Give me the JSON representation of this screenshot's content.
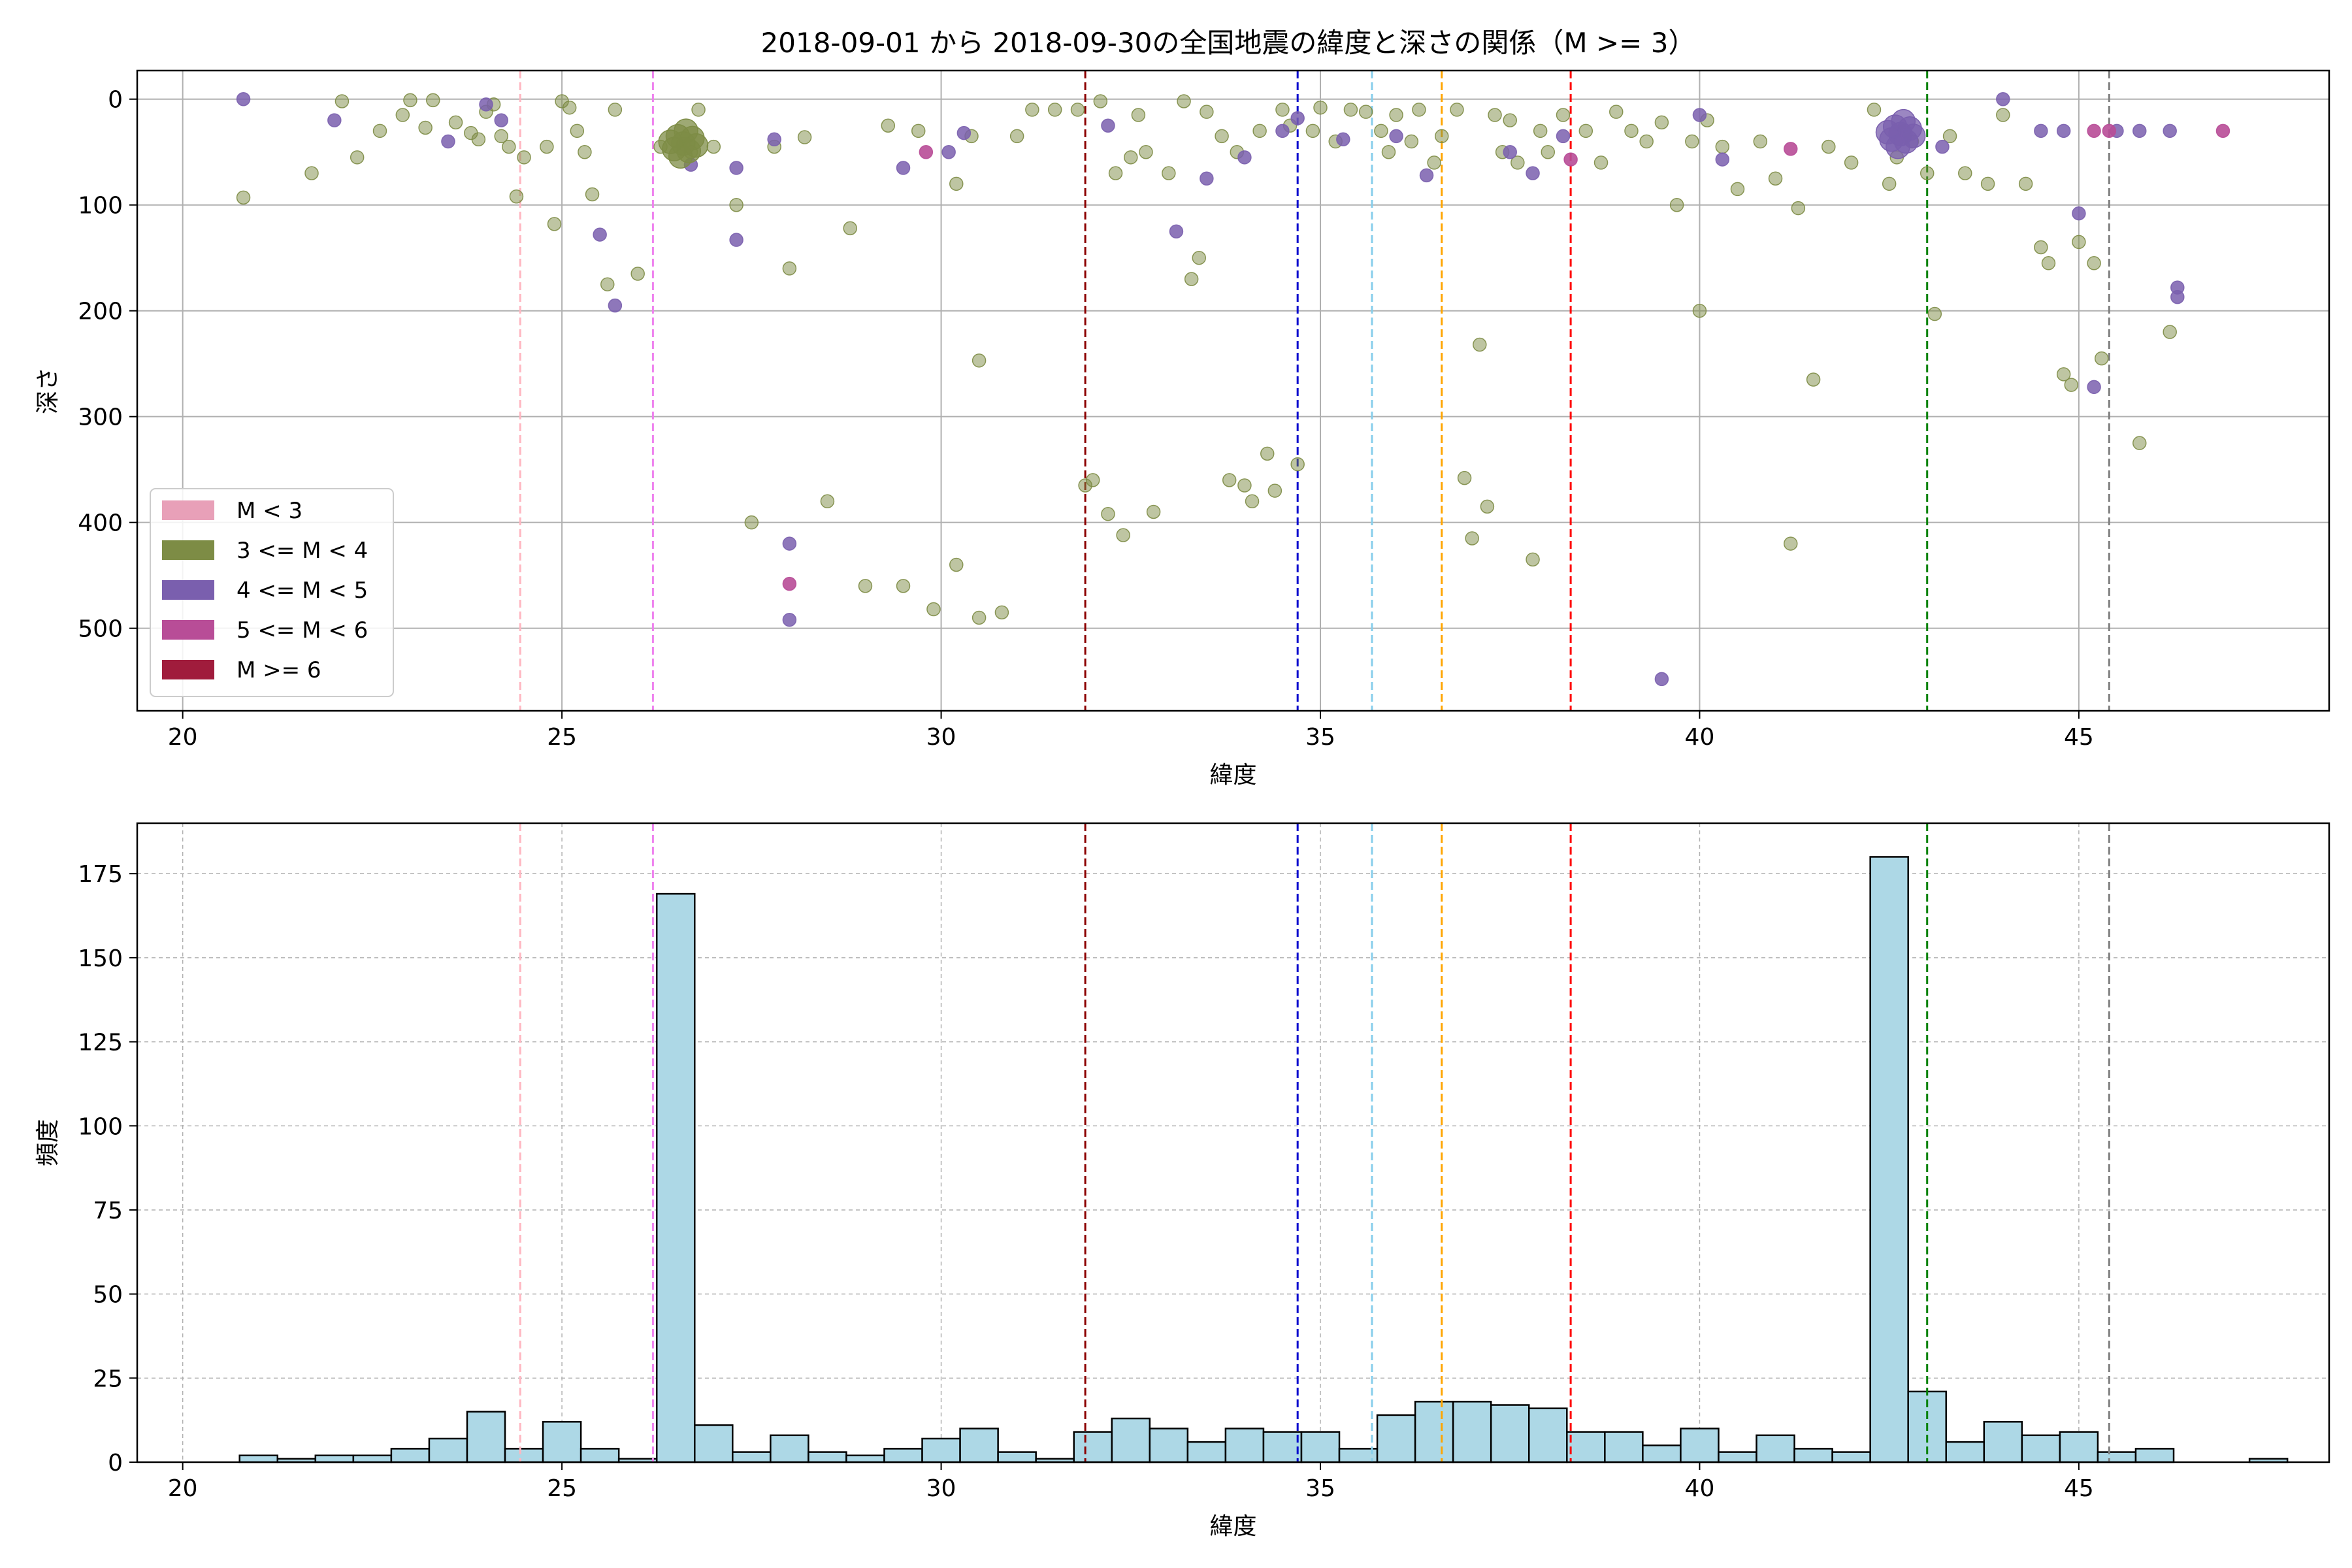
{
  "title": "2018-09-01 から 2018-09-30の全国地震の緯度と深さの関係（M >= 3）",
  "colors": {
    "m_lt3": "#e8a0b8",
    "m_3_4": "#7d8c45",
    "m_4_5": "#7a5fae",
    "m_5_6": "#b84d97",
    "m_ge6": "#a01c3c",
    "bar_fill": "#add8e6",
    "grid": "#b0b0b0"
  },
  "legend": {
    "items": [
      {
        "label": "M < 3",
        "color": "#e8a0b8"
      },
      {
        "label": "3 <= M < 4",
        "color": "#7d8c45"
      },
      {
        "label": "4 <= M < 5",
        "color": "#7a5fae"
      },
      {
        "label": "5 <= M < 6",
        "color": "#b84d97"
      },
      {
        "label": "M >= 6",
        "color": "#a01c3c"
      }
    ]
  },
  "chart_data": [
    {
      "type": "scatter",
      "title": "2018-09-01 から 2018-09-30の全国地震の緯度と深さの関係（M >= 3）",
      "xlabel": "緯度",
      "ylabel": "深さ",
      "xlim": [
        19.4,
        48.3
      ],
      "ylim": [
        578,
        -27
      ],
      "y_inverted": true,
      "grid": true,
      "legend_position": "lower-left",
      "x_ticks": [
        20,
        25,
        30,
        35,
        40,
        45
      ],
      "y_ticks": [
        0,
        100,
        200,
        300,
        400,
        500
      ],
      "vlines": [
        {
          "x": 24.45,
          "color": "#ffb6c1"
        },
        {
          "x": 26.2,
          "color": "#ee82ee"
        },
        {
          "x": 31.9,
          "color": "#8b0000"
        },
        {
          "x": 34.7,
          "color": "#0000cd"
        },
        {
          "x": 35.68,
          "color": "#87ceeb"
        },
        {
          "x": 36.6,
          "color": "#ffa500"
        },
        {
          "x": 38.3,
          "color": "#ff0000"
        },
        {
          "x": 43.0,
          "color": "#008000"
        },
        {
          "x": 45.4,
          "color": "#808080"
        }
      ],
      "series": [
        {
          "name": "3 <= M < 4",
          "color": "#7d8c45",
          "alpha": 0.5,
          "points": [
            [
              20.8,
              93
            ],
            [
              21.7,
              70
            ],
            [
              22.1,
              2
            ],
            [
              22.3,
              55
            ],
            [
              22.6,
              30
            ],
            [
              22.9,
              15
            ],
            [
              23.0,
              1
            ],
            [
              23.2,
              27
            ],
            [
              23.3,
              1
            ],
            [
              23.6,
              22
            ],
            [
              23.8,
              32
            ],
            [
              23.9,
              38
            ],
            [
              24.0,
              12
            ],
            [
              24.1,
              5
            ],
            [
              24.2,
              35
            ],
            [
              24.3,
              45
            ],
            [
              24.4,
              92
            ],
            [
              24.5,
              55
            ],
            [
              24.8,
              45
            ],
            [
              24.9,
              118
            ],
            [
              25.0,
              2
            ],
            [
              25.1,
              8
            ],
            [
              25.2,
              30
            ],
            [
              25.3,
              50
            ],
            [
              25.4,
              90
            ],
            [
              25.6,
              175
            ],
            [
              25.7,
              10
            ],
            [
              26.0,
              165
            ],
            [
              26.3,
              45
            ],
            [
              26.6,
              42
            ],
            [
              26.7,
              50
            ],
            [
              26.8,
              10
            ],
            [
              27.0,
              45
            ],
            [
              27.3,
              100
            ],
            [
              27.5,
              400
            ],
            [
              27.8,
              45
            ],
            [
              28.0,
              160
            ],
            [
              28.2,
              36
            ],
            [
              28.5,
              380
            ],
            [
              28.8,
              122
            ],
            [
              29.0,
              460
            ],
            [
              29.3,
              25
            ],
            [
              29.5,
              460
            ],
            [
              29.7,
              30
            ],
            [
              29.9,
              482
            ],
            [
              30.2,
              80
            ],
            [
              30.2,
              440
            ],
            [
              30.4,
              35
            ],
            [
              30.5,
              490
            ],
            [
              30.5,
              247
            ],
            [
              30.8,
              485
            ],
            [
              31.0,
              35
            ],
            [
              31.2,
              10
            ],
            [
              31.5,
              10
            ],
            [
              31.8,
              10
            ],
            [
              31.9,
              365
            ],
            [
              32.0,
              360
            ],
            [
              32.1,
              2
            ],
            [
              32.2,
              392
            ],
            [
              32.3,
              70
            ],
            [
              32.4,
              412
            ],
            [
              32.5,
              55
            ],
            [
              32.6,
              15
            ],
            [
              32.7,
              50
            ],
            [
              32.8,
              390
            ],
            [
              33.0,
              70
            ],
            [
              33.2,
              2
            ],
            [
              33.3,
              170
            ],
            [
              33.4,
              150
            ],
            [
              33.5,
              12
            ],
            [
              33.7,
              35
            ],
            [
              33.8,
              360
            ],
            [
              33.9,
              50
            ],
            [
              34.0,
              365
            ],
            [
              34.1,
              380
            ],
            [
              34.2,
              30
            ],
            [
              34.3,
              335
            ],
            [
              34.4,
              370
            ],
            [
              34.5,
              10
            ],
            [
              34.6,
              25
            ],
            [
              34.7,
              345
            ],
            [
              34.9,
              30
            ],
            [
              35.0,
              8
            ],
            [
              35.2,
              40
            ],
            [
              35.4,
              10
            ],
            [
              35.6,
              12
            ],
            [
              35.8,
              30
            ],
            [
              35.9,
              50
            ],
            [
              36.0,
              15
            ],
            [
              36.2,
              40
            ],
            [
              36.3,
              10
            ],
            [
              36.5,
              60
            ],
            [
              36.6,
              35
            ],
            [
              36.8,
              10
            ],
            [
              36.9,
              358
            ],
            [
              37.0,
              415
            ],
            [
              37.1,
              232
            ],
            [
              37.2,
              385
            ],
            [
              37.3,
              15
            ],
            [
              37.4,
              50
            ],
            [
              37.5,
              20
            ],
            [
              37.6,
              60
            ],
            [
              37.8,
              435
            ],
            [
              37.9,
              30
            ],
            [
              38.0,
              50
            ],
            [
              38.2,
              15
            ],
            [
              38.5,
              30
            ],
            [
              38.7,
              60
            ],
            [
              38.9,
              12
            ],
            [
              39.1,
              30
            ],
            [
              39.3,
              40
            ],
            [
              39.5,
              22
            ],
            [
              39.7,
              100
            ],
            [
              39.9,
              40
            ],
            [
              40.0,
              200
            ],
            [
              40.1,
              20
            ],
            [
              40.3,
              45
            ],
            [
              40.5,
              85
            ],
            [
              40.8,
              40
            ],
            [
              41.0,
              75
            ],
            [
              41.2,
              420
            ],
            [
              41.3,
              103
            ],
            [
              41.5,
              265
            ],
            [
              41.7,
              45
            ],
            [
              42.0,
              60
            ],
            [
              42.3,
              10
            ],
            [
              42.5,
              80
            ],
            [
              42.6,
              55
            ],
            [
              42.7,
              30
            ],
            [
              42.8,
              40
            ],
            [
              43.0,
              70
            ],
            [
              43.1,
              203
            ],
            [
              43.3,
              35
            ],
            [
              43.5,
              70
            ],
            [
              43.8,
              80
            ],
            [
              44.0,
              15
            ],
            [
              44.3,
              80
            ],
            [
              44.5,
              140
            ],
            [
              44.6,
              155
            ],
            [
              44.8,
              260
            ],
            [
              44.9,
              270
            ],
            [
              45.0,
              135
            ],
            [
              45.2,
              155
            ],
            [
              45.3,
              245
            ],
            [
              45.8,
              325
            ],
            [
              46.2,
              220
            ]
          ]
        },
        {
          "name": "4 <= M < 5",
          "color": "#7a5fae",
          "alpha": 0.85,
          "points": [
            [
              20.8,
              0
            ],
            [
              22.0,
              20
            ],
            [
              23.5,
              40
            ],
            [
              24.0,
              5
            ],
            [
              24.2,
              20
            ],
            [
              25.5,
              128
            ],
            [
              25.7,
              195
            ],
            [
              26.7,
              62
            ],
            [
              27.3,
              65
            ],
            [
              27.3,
              133
            ],
            [
              27.8,
              38
            ],
            [
              28.0,
              420
            ],
            [
              28.0,
              492
            ],
            [
              29.5,
              65
            ],
            [
              30.1,
              50
            ],
            [
              30.3,
              32
            ],
            [
              32.2,
              25
            ],
            [
              33.1,
              125
            ],
            [
              33.5,
              75
            ],
            [
              34.0,
              55
            ],
            [
              34.5,
              30
            ],
            [
              34.7,
              18
            ],
            [
              35.3,
              38
            ],
            [
              36.0,
              35
            ],
            [
              36.4,
              72
            ],
            [
              37.5,
              50
            ],
            [
              37.8,
              70
            ],
            [
              38.2,
              35
            ],
            [
              39.5,
              548
            ],
            [
              40.0,
              15
            ],
            [
              40.3,
              57
            ],
            [
              43.2,
              45
            ],
            [
              44.0,
              0
            ],
            [
              44.5,
              30
            ],
            [
              44.8,
              30
            ],
            [
              45.0,
              108
            ],
            [
              45.2,
              272
            ],
            [
              45.5,
              30
            ],
            [
              45.8,
              30
            ],
            [
              46.2,
              30
            ],
            [
              46.3,
              178
            ],
            [
              46.3,
              187
            ]
          ]
        },
        {
          "name": "5 <= M < 6",
          "color": "#b84d97",
          "alpha": 0.9,
          "points": [
            [
              28.0,
              458
            ],
            [
              29.8,
              50
            ],
            [
              38.3,
              57
            ],
            [
              41.2,
              47
            ],
            [
              45.2,
              30
            ],
            [
              45.4,
              30
            ],
            [
              46.9,
              30
            ]
          ]
        }
      ],
      "clusters": [
        {
          "name": "3 <= M < 4",
          "x": 26.6,
          "y": 42
        },
        {
          "name": "4 <= M < 5",
          "x": 42.65,
          "y": 33
        }
      ]
    },
    {
      "type": "bar",
      "xlabel": "緯度",
      "ylabel": "頻度",
      "xlim": [
        19.4,
        48.3
      ],
      "ylim": [
        0,
        190
      ],
      "grid": true,
      "x_ticks": [
        20,
        25,
        30,
        35,
        40,
        45
      ],
      "y_ticks": [
        0,
        25,
        50,
        75,
        100,
        125,
        150,
        175
      ],
      "bin_start": 20.75,
      "bin_width": 0.5,
      "values": [
        2,
        1,
        2,
        2,
        4,
        7,
        15,
        4,
        12,
        4,
        1,
        169,
        11,
        3,
        8,
        3,
        2,
        4,
        7,
        10,
        3,
        1,
        9,
        13,
        10,
        6,
        10,
        9,
        9,
        4,
        14,
        18,
        18,
        17,
        16,
        9,
        9,
        5,
        10,
        3,
        8,
        4,
        3,
        180,
        21,
        6,
        12,
        8,
        9,
        3,
        4,
        0,
        0,
        1
      ],
      "vlines": [
        {
          "x": 24.45,
          "color": "#ffb6c1"
        },
        {
          "x": 26.2,
          "color": "#ee82ee"
        },
        {
          "x": 31.9,
          "color": "#8b0000"
        },
        {
          "x": 34.7,
          "color": "#0000cd"
        },
        {
          "x": 35.68,
          "color": "#87ceeb"
        },
        {
          "x": 36.6,
          "color": "#ffa500"
        },
        {
          "x": 38.3,
          "color": "#ff0000"
        },
        {
          "x": 43.0,
          "color": "#008000"
        },
        {
          "x": 45.4,
          "color": "#808080"
        }
      ]
    }
  ]
}
